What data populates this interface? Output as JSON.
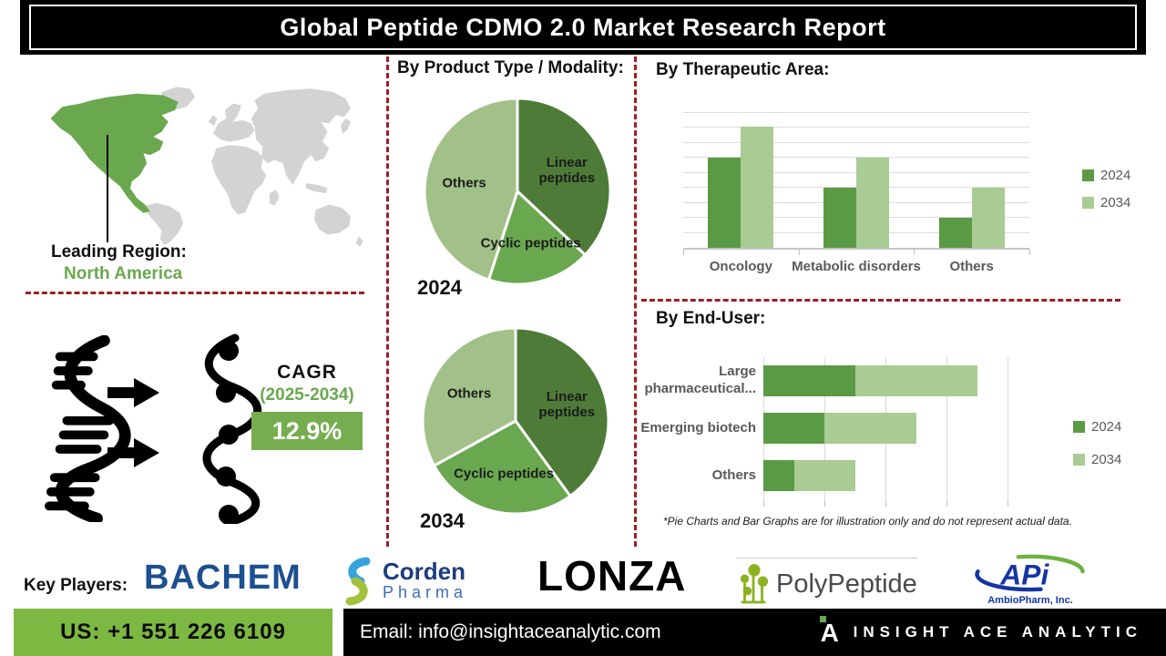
{
  "header": {
    "title": "Global Peptide CDMO 2.0 Market Research Report"
  },
  "region": {
    "label": "Leading Region:",
    "value": "North America"
  },
  "cagr": {
    "label": "CAGR",
    "period": "(2025-2034)",
    "value": "12.9%"
  },
  "sections": {
    "product_type": {
      "title": "By Product Type / Modality:"
    },
    "therapeutic": {
      "title": "By Therapeutic Area:"
    },
    "end_user": {
      "title": "By End-User:"
    },
    "footnote": "*Pie Charts and Bar Graphs are for illustration only and do not represent actual data."
  },
  "chart_data": [
    {
      "id": "pie-2024",
      "type": "pie",
      "title": "2024",
      "labels": [
        "Linear peptides",
        "Cyclic peptides",
        "Others"
      ],
      "values": [
        37,
        18,
        45
      ],
      "colors": [
        "#4e7c38",
        "#6aa84f",
        "#a2c189"
      ],
      "legend_position": "none",
      "note": "illustrative percentages estimated from slice angles"
    },
    {
      "id": "pie-2034",
      "type": "pie",
      "title": "2034",
      "labels": [
        "Linear peptides",
        "Cyclic peptides",
        "Others"
      ],
      "values": [
        40,
        27,
        33
      ],
      "colors": [
        "#4e7c38",
        "#6aa84f",
        "#a2c189"
      ],
      "legend_position": "none",
      "note": "illustrative percentages estimated from slice angles"
    },
    {
      "id": "therapeutic-bars",
      "type": "bar",
      "title": "By Therapeutic Area:",
      "categories": [
        "Oncology",
        "Metabolic disorders",
        "Others"
      ],
      "series": [
        {
          "name": "2024",
          "color": "#5b9a44",
          "values": [
            6,
            4,
            2
          ]
        },
        {
          "name": "2034",
          "color": "#a9cb94",
          "values": [
            8.1,
            6,
            4
          ]
        }
      ],
      "xlabel": "",
      "ylabel": "",
      "ylim": [
        0,
        9
      ],
      "grid": true,
      "legend_position": "right",
      "note": "unlabeled axis; values estimated in gridline units"
    },
    {
      "id": "enduser-bars",
      "type": "stacked-hbar",
      "title": "By End-User:",
      "categories": [
        "Large pharmaceutical...",
        "Emerging biotech",
        "Others"
      ],
      "series": [
        {
          "name": "2024",
          "color": "#5b9a44",
          "values": [
            1.5,
            1.0,
            0.5
          ]
        },
        {
          "name": "2034",
          "color": "#a9cb94",
          "values": [
            2.0,
            1.5,
            1.0
          ]
        }
      ],
      "xlabel": "",
      "ylabel": "",
      "xlim": [
        0,
        4
      ],
      "grid": true,
      "legend_position": "right",
      "note": "unlabeled axis; values estimated in gridline units"
    }
  ],
  "key_players": {
    "label": "Key Players:",
    "players": [
      {
        "name": "BACHEM"
      },
      {
        "name": "Corden Pharma",
        "line1": "Corden",
        "line2": "Pharma"
      },
      {
        "name": "LONZA"
      },
      {
        "name": "PolyPeptide"
      },
      {
        "name": "APi",
        "sub": "AmbioPharm, Inc."
      }
    ]
  },
  "footer": {
    "phone": "US: +1 551 226 6109",
    "email": "Email: info@insightaceanalytic.com",
    "brand": "INSIGHT ACE ANALYTIC"
  },
  "colors": {
    "accent_green": "#6aa84f",
    "pie_dark_green": "#4e7c38",
    "pie_light_green": "#a2c189",
    "bar_dark_green": "#5b9a44",
    "bar_light_green": "#a9cb94",
    "cagr_box_green": "#76ad4f",
    "footer_green": "#7db843",
    "divider_red": "#9c1f24",
    "map_gray": "#d3d3d3",
    "chart_text_gray": "#595959",
    "bachem_blue": "#1d4f91",
    "api_blue": "#1535a3"
  }
}
